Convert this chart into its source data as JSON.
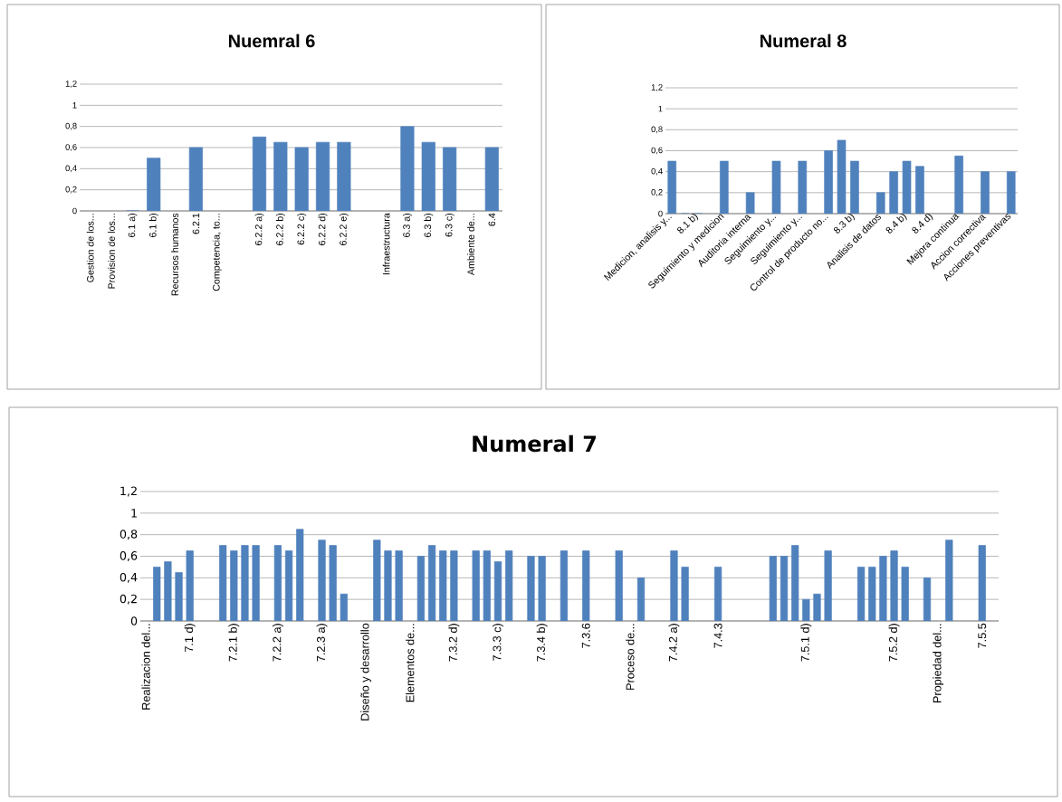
{
  "chart_data": [
    {
      "type": "bar",
      "title": "Nuemral 6",
      "color": "#4f81bd",
      "grid": "y",
      "categories": [
        "Gestion de los...",
        "Provision de los...",
        "6.1 a)",
        "6.1 b)",
        "Recursos humanos",
        "6.2.1",
        "Competencia, to...",
        null,
        "6.2.2 a)",
        "6.2.2 b)",
        "6.2.2 c)",
        "6.2.2 d)",
        "6.2.2 e)",
        null,
        "Infraestructura",
        "6.3 a)",
        "6.3 b)",
        "6.3 c)",
        "Ambiente de...",
        "6.4"
      ],
      "values": [
        null,
        null,
        0,
        0.5,
        null,
        0.6,
        null,
        null,
        0.7,
        0.65,
        0.6,
        0.65,
        0.65,
        null,
        null,
        0.8,
        0.65,
        0.6,
        null,
        0.6
      ],
      "ylim": [
        0,
        1.2
      ],
      "yticks": [
        0,
        {
          "value": 0.2,
          "label": "0,2"
        },
        {
          "value": 0.4,
          "label": "0,4"
        },
        {
          "value": 0.6,
          "label": "0,6"
        },
        {
          "value": 0.8,
          "label": "0,8"
        },
        1,
        {
          "value": 1.2,
          "label": "1,2"
        }
      ]
    },
    {
      "type": "bar",
      "title": "Numeral 8",
      "color": "#4f81bd",
      "grid": "y",
      "categories": [
        "Medicion, analisis y...",
        null,
        "8.1 b)",
        null,
        "Seguimiento y medicion",
        null,
        "Auditoria interna",
        null,
        "Seguimiento y...",
        null,
        "Seguimiento y...",
        null,
        "Control de producto no...",
        null,
        "8.3 b)",
        null,
        "Analisis de datos",
        null,
        "8.4 b)",
        null,
        "8.4 d)",
        null,
        "Mejora continua",
        null,
        "Accion correctiva",
        null,
        "Acciones preventivas"
      ],
      "values": [
        0.5,
        0,
        0,
        null,
        0.5,
        null,
        0.2,
        null,
        0.5,
        null,
        0.5,
        null,
        0.6,
        0.7,
        0.5,
        null,
        0.2,
        0.4,
        0.5,
        0.45,
        null,
        null,
        0.55,
        null,
        0.4,
        null,
        0.4
      ],
      "ylim": [
        0,
        1.2
      ],
      "yticks": [
        0,
        {
          "value": 0.2,
          "label": "0,2"
        },
        {
          "value": 0.4,
          "label": "0,4"
        },
        {
          "value": 0.6,
          "label": "0,6"
        },
        {
          "value": 0.8,
          "label": "0,8"
        },
        1,
        {
          "value": 1.2,
          "label": "1,2"
        }
      ]
    },
    {
      "type": "bar",
      "title": "Numeral 7",
      "color": "#4f81bd",
      "grid": "y",
      "categories": [
        "Realizacion del...",
        null,
        null,
        null,
        "7.1 d)",
        null,
        null,
        null,
        "7.2.1 b)",
        null,
        null,
        null,
        "7.2.2 a)",
        null,
        null,
        null,
        "7.2.3 a)",
        null,
        null,
        null,
        "Diseño y desarrollo",
        null,
        null,
        null,
        "Elementos de...",
        null,
        null,
        null,
        "7.3.2 d)",
        null,
        null,
        null,
        "7.3.3 c)",
        null,
        null,
        null,
        "7.3.4 b)",
        null,
        null,
        null,
        "7.3.6",
        null,
        null,
        null,
        "Proceso de...",
        null,
        null,
        null,
        "7.4.2 a)",
        null,
        null,
        null,
        "7.4.3",
        null,
        null,
        null,
        null,
        null,
        null,
        null,
        "7.5.1 d)",
        null,
        null,
        null,
        null,
        null,
        null,
        null,
        "7.5.2 d)",
        null,
        null,
        null,
        "Propiedad del...",
        null,
        null,
        null,
        "7.5.5",
        null
      ],
      "values": [
        null,
        0.5,
        0.55,
        0.45,
        0.65,
        null,
        null,
        0.7,
        0.65,
        0.7,
        0.7,
        null,
        0.7,
        0.65,
        0.85,
        null,
        0.75,
        0.7,
        0.25,
        null,
        null,
        0.75,
        0.65,
        0.65,
        null,
        0.6,
        0.7,
        0.65,
        0.65,
        null,
        0.65,
        0.65,
        0.55,
        0.65,
        null,
        0.6,
        0.6,
        null,
        0.65,
        null,
        0.65,
        null,
        null,
        0.65,
        null,
        0.4,
        null,
        null,
        0.65,
        0.5,
        null,
        null,
        0.5,
        null,
        null,
        null,
        null,
        0.6,
        0.6,
        0.7,
        0.2,
        0.25,
        0.65,
        null,
        null,
        0.5,
        0.5,
        0.6,
        0.65,
        0.5,
        null,
        0.4,
        null,
        0.75,
        null,
        null,
        0.7,
        null
      ],
      "ylim": [
        0,
        1.2
      ],
      "yticks": [
        0,
        {
          "value": 0.2,
          "label": "0,2"
        },
        {
          "value": 0.4,
          "label": "0,4"
        },
        {
          "value": 0.6,
          "label": "0,6"
        },
        {
          "value": 0.8,
          "label": "0,8"
        },
        1,
        {
          "value": 1.2,
          "label": "1,2"
        }
      ]
    }
  ]
}
